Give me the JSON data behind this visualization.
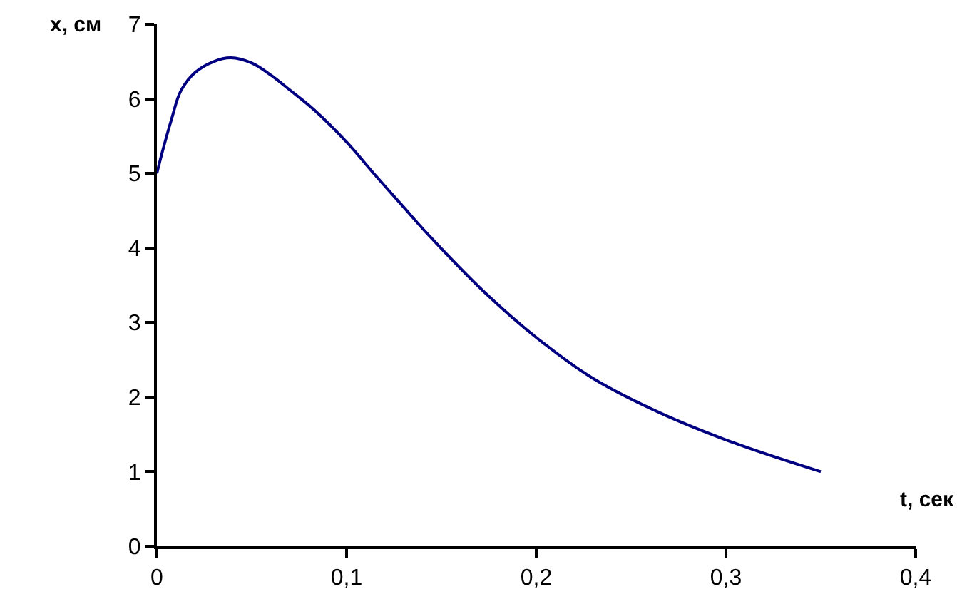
{
  "chart_data": {
    "type": "line",
    "xlabel": "t, сек",
    "ylabel": "x, см",
    "x": [
      0,
      0.003,
      0.008,
      0.0125,
      0.02,
      0.03,
      0.039,
      0.05,
      0.06,
      0.07,
      0.083,
      0.1,
      0.115,
      0.13,
      0.143,
      0.173,
      0.2,
      0.23,
      0.266,
      0.305,
      0.35
    ],
    "series": [
      {
        "color": "#000080",
        "values": [
          5,
          5.3,
          5.75,
          6.1,
          6.35,
          6.5,
          6.55,
          6.48,
          6.32,
          6.12,
          5.85,
          5.42,
          4.98,
          4.55,
          4.18,
          3.4,
          2.8,
          2.25,
          1.78,
          1.38,
          1.0
        ]
      }
    ],
    "xlim": [
      0,
      0.4
    ],
    "xticks": [
      {
        "value": 0,
        "label": "0"
      },
      {
        "value": 0.1,
        "label": "0,1"
      },
      {
        "value": 0.2,
        "label": "0,2"
      },
      {
        "value": 0.3,
        "label": "0,3"
      },
      {
        "value": 0.4,
        "label": "0,4"
      }
    ],
    "ylim": [
      0,
      7
    ],
    "yticks": [
      0,
      1,
      2,
      3,
      4,
      5,
      6,
      7
    ],
    "grid": false,
    "marker": "none",
    "line_style": "solid"
  }
}
